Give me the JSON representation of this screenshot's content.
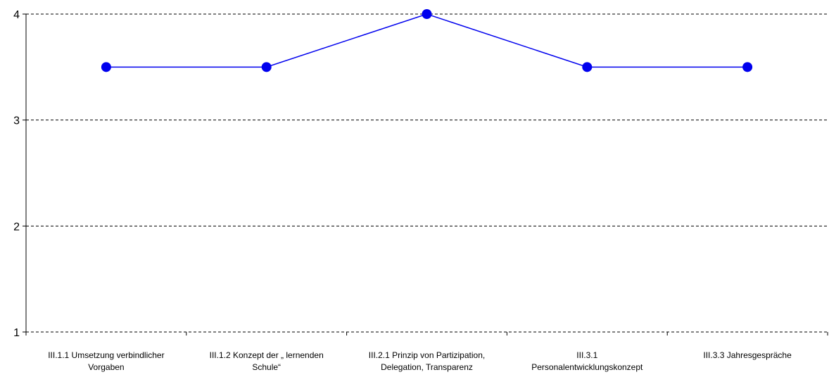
{
  "chart_data": {
    "type": "line",
    "title": "",
    "xlabel": "",
    "ylabel": "",
    "categories": [
      [
        "III.1.1 Umsetzung verbindlicher",
        "Vorgaben"
      ],
      [
        "III.1.2 Konzept der „ lernenden",
        "Schule“"
      ],
      [
        "III.2.1 Prinzip von Partizipation,",
        "Delegation, Transparenz"
      ],
      [
        "III.3.1",
        "Personalentwicklungskonzept"
      ],
      [
        "III.3.3 Jahresgespräche"
      ]
    ],
    "series": [
      {
        "values": [
          3.5,
          3.5,
          4,
          3.5,
          3.5
        ]
      }
    ],
    "ylim": [
      1,
      4
    ],
    "yticks": [
      1,
      2,
      3,
      4
    ],
    "grid": true,
    "grid_style": "dashed",
    "line_color": "#0000ee",
    "marker_color": "#0000ee",
    "grid_color": "#000000"
  }
}
